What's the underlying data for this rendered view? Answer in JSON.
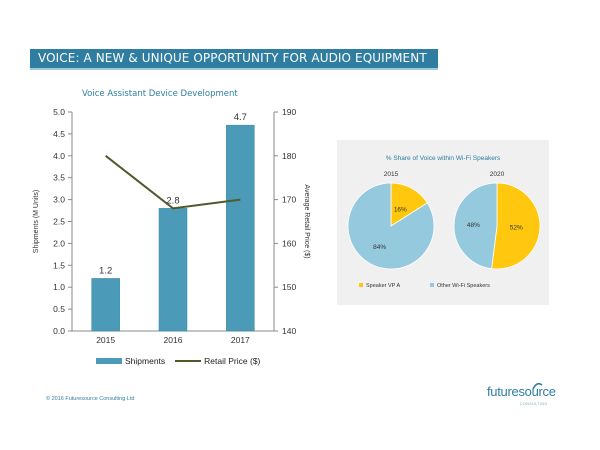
{
  "slide": {
    "title": "VOICE: A NEW & UNIQUE OPPORTUNITY FOR AUDIO EQUIPMENT",
    "copyright": "© 2016 Futuresource Consulting Ltd",
    "logo_text": "futuresource",
    "logo_subtext": "CONSULTING",
    "accent_color": "#2f7ea1"
  },
  "chart_data": [
    {
      "type": "bar",
      "title": "Voice Assistant Device Development",
      "categories": [
        "2015",
        "2016",
        "2017"
      ],
      "series": [
        {
          "name": "Shipments",
          "type": "bar",
          "axis": "left",
          "values": [
            1.2,
            2.8,
            4.7
          ],
          "color": "#4a9ab8"
        },
        {
          "name": "Retail Price ($)",
          "type": "line",
          "axis": "right",
          "values": [
            180,
            168,
            170
          ],
          "color": "#4e5a2c"
        }
      ],
      "data_labels": [
        "1.2",
        "2.8",
        "4.7"
      ],
      "ylabel": "Shipments (M Units)",
      "y2label": "Average Retail Price ($)",
      "ylim": [
        0,
        5
      ],
      "y2lim": [
        140,
        190
      ],
      "yticks": [
        "0.0",
        "0.5",
        "1.0",
        "1.5",
        "2.0",
        "2.5",
        "3.0",
        "3.5",
        "4.0",
        "4.5",
        "5.0"
      ],
      "y2ticks": [
        "140",
        "150",
        "160",
        "170",
        "180",
        "190"
      ],
      "legend": "bottom",
      "grid": false
    },
    {
      "type": "pie",
      "title": "% Share of Voice within Wi-Fi Speakers",
      "pies": [
        {
          "label": "2015",
          "values": [
            16,
            84
          ],
          "value_labels": [
            "16%",
            "84%"
          ]
        },
        {
          "label": "2020",
          "values": [
            52,
            48
          ],
          "value_labels": [
            "52%",
            "48%"
          ]
        }
      ],
      "categories": [
        "Speaker VP A",
        "Other Wi-Fi Speakers"
      ],
      "colors": [
        "#ffc70e",
        "#95c9de"
      ],
      "legend": "bottom"
    }
  ]
}
